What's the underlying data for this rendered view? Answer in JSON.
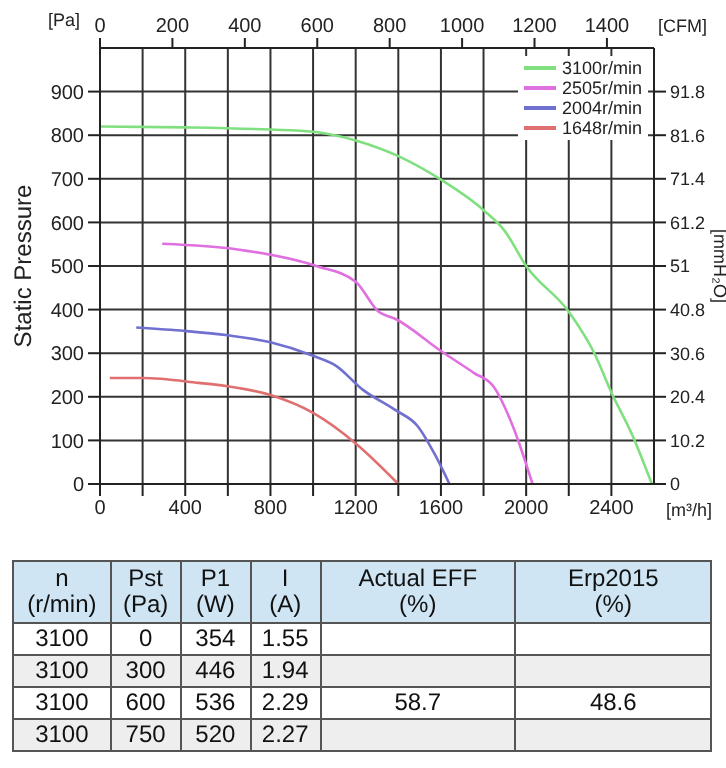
{
  "chart_data": [
    {
      "type": "line",
      "ylabel": "Static Pressure",
      "xlabel": "[m³/h]",
      "x2label": "[CFM]",
      "y2label": "[mmH₂O]",
      "annotations": [
        "[Pa]"
      ],
      "xlim": [
        0,
        2600
      ],
      "xticks": [
        0,
        {
          "value": 200,
          "label": null
        },
        400,
        {
          "value": 600,
          "label": null
        },
        800,
        {
          "value": 1000,
          "label": null
        },
        1200,
        {
          "value": 1400,
          "label": null
        },
        1600,
        {
          "value": 1800,
          "label": null
        },
        2000,
        {
          "value": 2200,
          "label": null
        },
        2400
      ],
      "x2lim": [
        0,
        1530
      ],
      "x2ticks": [
        0,
        200,
        400,
        600,
        800,
        1000,
        1200,
        1400
      ],
      "ylim": [
        0,
        1000
      ],
      "yticks": [
        0,
        100,
        200,
        300,
        400,
        500,
        600,
        700,
        800,
        900
      ],
      "y2lim": [
        0,
        102
      ],
      "y2ticks": [
        0,
        10.2,
        20.4,
        30.6,
        40.8,
        51,
        61.2,
        71.4,
        81.6,
        91.8
      ],
      "grid": true,
      "legend": "top right",
      "marker": "none",
      "line_style": "solid",
      "series": [
        {
          "name": "3100r/min",
          "color": "#80e080",
          "x": [
            0,
            400,
            800,
            1000,
            1200,
            1400,
            1600,
            1800,
            1900,
            2000,
            2200,
            2320,
            2400,
            2500,
            2590
          ],
          "values": [
            820,
            818,
            813,
            808,
            788,
            752,
            698,
            628,
            580,
            500,
            395,
            300,
            210,
            110,
            0
          ]
        },
        {
          "name": "2505r/min",
          "color": "#e070e0",
          "x": [
            292,
            646,
            1015,
            1200,
            1308,
            1385,
            1600,
            1754,
            1846,
            1938,
            2030
          ],
          "values": [
            551,
            538,
            500,
            464,
            395,
            379,
            305,
            255,
            224,
            132,
            0
          ]
        },
        {
          "name": "2004r/min",
          "color": "#7070d0",
          "x": [
            170,
            400,
            600,
            800,
            1000,
            1108,
            1231,
            1385,
            1492,
            1569,
            1640
          ],
          "values": [
            359,
            351,
            341,
            325,
            294,
            271,
            217,
            170,
            132,
            70,
            0
          ]
        },
        {
          "name": "1648r/min",
          "color": "#e07070",
          "x": [
            46,
            200,
            462,
            600,
            800,
            1000,
            1200,
            1400
          ],
          "values": [
            243,
            243,
            232,
            224,
            204,
            163,
            93,
            0
          ]
        }
      ]
    },
    {
      "type": "other",
      "categories": [
        "n\n(r/min)",
        "Pst\n(Pa)",
        "P1\n(W)",
        "I\n(A)",
        "Actual EFF\n(%)",
        "Erp2015\n(%)"
      ],
      "annotations": [
        "3100",
        "0",
        "354",
        "1.55",
        null,
        null,
        "3100",
        "300",
        "446",
        "1.94",
        null,
        null,
        "3100",
        "600",
        "536",
        "2.29",
        "58.7",
        "48.6",
        "3100",
        "750",
        "520",
        "2.27",
        null,
        null
      ]
    }
  ]
}
